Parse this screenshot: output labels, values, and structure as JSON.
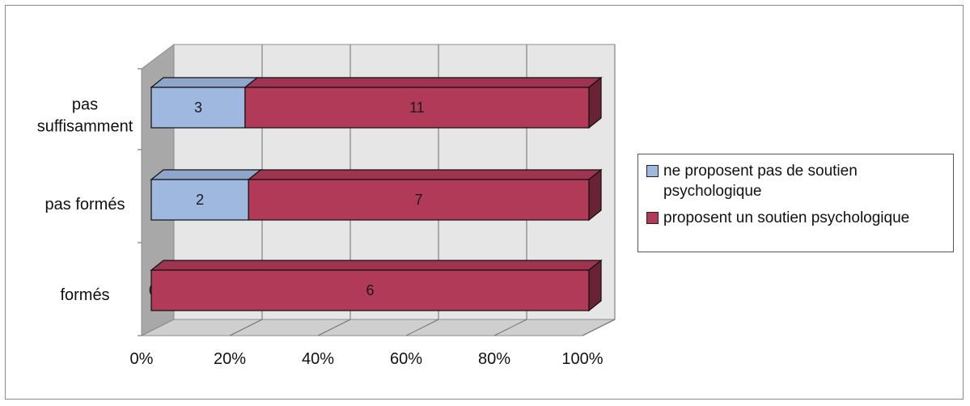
{
  "chart_data": {
    "type": "bar",
    "orientation": "horizontal",
    "stacked": "percent",
    "style": "3d",
    "categories": [
      "pas suffisamment",
      "pas formés",
      "formés"
    ],
    "category_lines": [
      [
        "pas",
        "suffisamment"
      ],
      [
        "pas formés"
      ],
      [
        "formés"
      ]
    ],
    "series": [
      {
        "name": "ne proposent pas de soutien psychologique",
        "legend_lines": [
          "ne proposent pas de soutien",
          "psychologique"
        ],
        "values": [
          3,
          2,
          0
        ],
        "color": "#9EB8DF"
      },
      {
        "name": "proposent un soutien psychologique",
        "legend_lines": [
          "proposent un soutien psychologique"
        ],
        "values": [
          11,
          7,
          6
        ],
        "color": "#B03A58"
      }
    ],
    "x_ticks": [
      "0%",
      "20%",
      "40%",
      "60%",
      "80%",
      "100%"
    ],
    "xlim": [
      0,
      100
    ],
    "xlabel": "",
    "ylabel": "",
    "title": "",
    "grid": true,
    "legend_position": "right"
  }
}
